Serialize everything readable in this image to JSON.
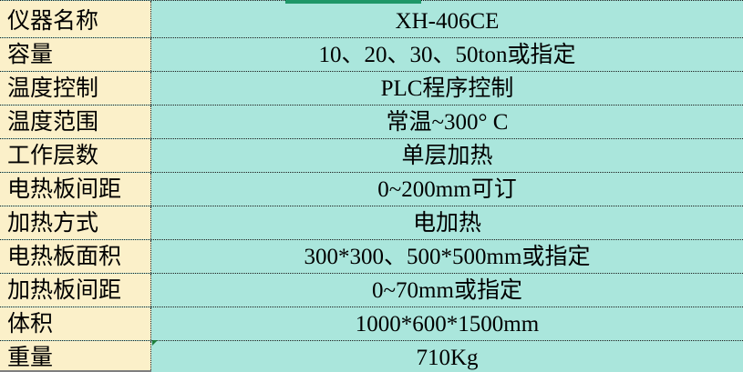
{
  "table": {
    "rows": [
      {
        "label": "仪器名称",
        "value": "XH-406CE"
      },
      {
        "label": "容量",
        "value": "10、20、30、50ton或指定"
      },
      {
        "label": "温度控制",
        "value": "PLC程序控制"
      },
      {
        "label": "温度范围",
        "value": "常温~300° C"
      },
      {
        "label": "工作层数",
        "value": "单层加热"
      },
      {
        "label": "电热板间距",
        "value": "0~200mm可订"
      },
      {
        "label": "加热方式",
        "value": "电加热"
      },
      {
        "label": "电热板面积",
        "value": "300*300、500*500mm或指定"
      },
      {
        "label": "加热板间距",
        "value": "0~70mm或指定"
      },
      {
        "label": "体积",
        "value": "1000*600*1500mm"
      },
      {
        "label": "重量",
        "value": "710Kg"
      }
    ]
  },
  "colors": {
    "label_column_bg": "#FBF0C9",
    "value_column_bg": "#AAE6DC",
    "grid_border": "#1A1A1A",
    "selection_bar": "#1F9768",
    "comment_triangle": "#1E7D3C",
    "bottom_edge": "#7F7F7F"
  }
}
